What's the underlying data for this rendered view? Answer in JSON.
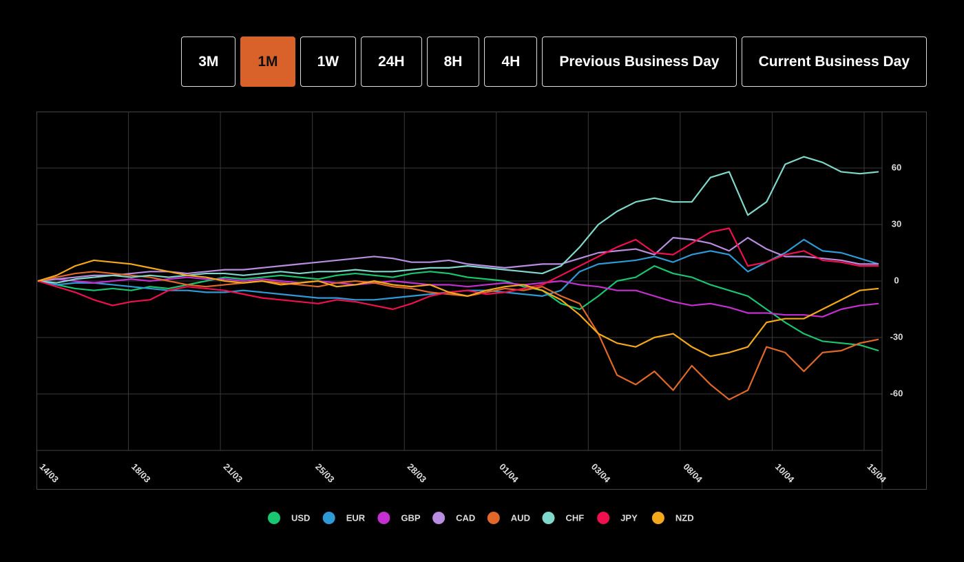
{
  "buttons": {
    "items": [
      "3M",
      "1M",
      "1W",
      "24H",
      "8H",
      "4H",
      "Previous Business Day",
      "Current Business Day"
    ],
    "active": 1
  },
  "chart_data": {
    "type": "line",
    "x_labels": [
      "14/03",
      "18/03",
      "21/03",
      "25/03",
      "28/03",
      "01/04",
      "03/04",
      "08/04",
      "10/04",
      "15/04"
    ],
    "ylim": [
      -90,
      90
    ],
    "yticks": [
      -60,
      -30,
      0,
      30,
      60
    ],
    "grid": true,
    "series": [
      {
        "name": "USD",
        "color": "#18c76f",
        "values": [
          0,
          -2,
          -4,
          -5,
          -4,
          -5,
          -3,
          -4,
          -2,
          0,
          2,
          1,
          2,
          3,
          2,
          1,
          3,
          4,
          3,
          2,
          4,
          5,
          4,
          2,
          1,
          0,
          -3,
          -5,
          -12,
          -15,
          -8,
          0,
          2,
          8,
          4,
          2,
          -2,
          -5,
          -8,
          -15,
          -22,
          -28,
          -32,
          -33,
          -34,
          -37
        ]
      },
      {
        "name": "EUR",
        "color": "#2f9bd6",
        "values": [
          0,
          -2,
          -1,
          -1,
          -2,
          -3,
          -4,
          -5,
          -5,
          -6,
          -6,
          -5,
          -6,
          -7,
          -8,
          -9,
          -9,
          -10,
          -10,
          -9,
          -8,
          -7,
          -6,
          -5,
          -5,
          -6,
          -7,
          -8,
          -5,
          5,
          9,
          10,
          11,
          13,
          10,
          14,
          16,
          14,
          5,
          10,
          15,
          22,
          16,
          15,
          12,
          9
        ]
      },
      {
        "name": "GBP",
        "color": "#c42fd0",
        "values": [
          0,
          1,
          0,
          -1,
          0,
          1,
          0,
          1,
          2,
          1,
          1,
          0,
          1,
          0,
          -1,
          0,
          -1,
          -2,
          -1,
          0,
          -1,
          -2,
          -2,
          -3,
          -2,
          -1,
          -2,
          -1,
          0,
          -2,
          -3,
          -5,
          -5,
          -8,
          -11,
          -13,
          -12,
          -14,
          -17,
          -17,
          -18,
          -18,
          -19,
          -15,
          -13,
          -12
        ]
      },
      {
        "name": "CAD",
        "color": "#b98ee0",
        "values": [
          0,
          1,
          2,
          3,
          3,
          4,
          5,
          5,
          4,
          5,
          6,
          6,
          7,
          8,
          9,
          10,
          11,
          12,
          13,
          12,
          10,
          10,
          11,
          9,
          8,
          7,
          8,
          9,
          9,
          12,
          15,
          16,
          17,
          14,
          23,
          22,
          20,
          16,
          23,
          17,
          13,
          13,
          12,
          11,
          9,
          9
        ]
      },
      {
        "name": "AUD",
        "color": "#e0692a",
        "values": [
          0,
          2,
          4,
          5,
          4,
          3,
          2,
          0,
          -2,
          -3,
          -2,
          -1,
          0,
          -1,
          -2,
          -3,
          -1,
          0,
          -1,
          -3,
          -4,
          -6,
          -7,
          -8,
          -6,
          -4,
          -5,
          -3,
          -8,
          -12,
          -28,
          -50,
          -55,
          -48,
          -58,
          -45,
          -55,
          -63,
          -58,
          -35,
          -38,
          -48,
          -38,
          -37,
          -33,
          -31
        ]
      },
      {
        "name": "CHF",
        "color": "#7fd8c9",
        "values": [
          0,
          -1,
          1,
          2,
          3,
          2,
          3,
          2,
          3,
          4,
          4,
          3,
          4,
          5,
          4,
          5,
          5,
          6,
          5,
          5,
          6,
          7,
          7,
          8,
          7,
          6,
          5,
          4,
          8,
          18,
          30,
          37,
          42,
          44,
          42,
          42,
          55,
          58,
          35,
          42,
          62,
          66,
          63,
          58,
          57,
          58
        ]
      },
      {
        "name": "JPY",
        "color": "#f0104f",
        "values": [
          0,
          -3,
          -6,
          -10,
          -13,
          -11,
          -10,
          -5,
          -3,
          -4,
          -5,
          -7,
          -9,
          -10,
          -11,
          -12,
          -10,
          -11,
          -13,
          -15,
          -12,
          -8,
          -6,
          -5,
          -7,
          -6,
          -4,
          -2,
          3,
          8,
          13,
          18,
          22,
          15,
          14,
          20,
          26,
          28,
          8,
          10,
          14,
          16,
          11,
          10,
          8,
          8
        ]
      },
      {
        "name": "NZD",
        "color": "#f4a81c",
        "values": [
          0,
          3,
          8,
          11,
          10,
          9,
          7,
          5,
          3,
          2,
          0,
          -1,
          0,
          -2,
          -1,
          0,
          -3,
          -2,
          0,
          -2,
          -3,
          -2,
          -6,
          -8,
          -5,
          -3,
          -2,
          -5,
          -10,
          -18,
          -28,
          -33,
          -35,
          -30,
          -28,
          -35,
          -40,
          -38,
          -35,
          -22,
          -20,
          -20,
          -15,
          -10,
          -5,
          -4
        ]
      }
    ]
  }
}
